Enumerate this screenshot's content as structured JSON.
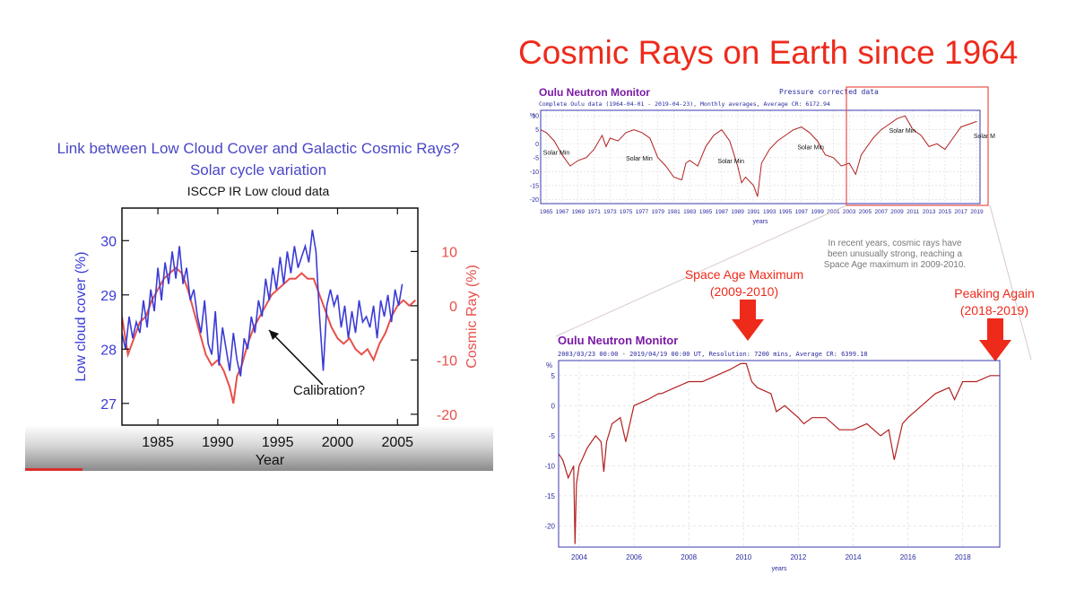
{
  "title": "Cosmic Rays on Earth since 1964",
  "left_panel": {
    "heading_line1": "Link between Low Cloud Cover and Galactic Cosmic Rays?",
    "heading_line2": "Solar cycle variation",
    "subtitle": "ISCCP IR Low cloud data",
    "annotation": "Calibration?"
  },
  "oulu_top_note": "In recent years, cosmic rays have been unusually strong, reaching a Space Age maximum in 2009-2010.",
  "callouts": {
    "space_age_maximum": [
      "Space Age Maximum",
      "(2009-2010)"
    ],
    "peaking_again": [
      "Peaking Again",
      "(2018-2019)"
    ]
  },
  "colors": {
    "title": "#ee2a1b",
    "cloud_series": "#3b3bd6",
    "cosmic_series": "#e8504a",
    "oulu_line": "#b22020",
    "oulu_title": "#7a1aa6",
    "axis_blue": "#2a2aa0"
  },
  "chart_data": [
    {
      "id": "low-cloud-vs-cosmic-ray",
      "type": "line",
      "title": "ISCCP IR Low cloud data",
      "xlabel": "Year",
      "ylabel": "Low cloud cover (%)",
      "ylabel_right": "Cosmic Ray (%)",
      "xlim": [
        1982,
        2006.7
      ],
      "ylim": [
        26.6,
        30.6
      ],
      "ylim_right": [
        -22,
        18
      ],
      "xticks": [
        1985,
        1990,
        1995,
        2000,
        2005
      ],
      "yticks": [
        27,
        28,
        29,
        30
      ],
      "yticks_right": [
        -20,
        -10,
        0,
        10
      ],
      "series": [
        {
          "name": "Low cloud cover (%)",
          "axis": "left",
          "x": [
            1982.0,
            1982.3,
            1982.6,
            1982.9,
            1983.2,
            1983.5,
            1983.8,
            1984.1,
            1984.4,
            1984.7,
            1985.0,
            1985.3,
            1985.6,
            1985.9,
            1986.2,
            1986.5,
            1986.8,
            1987.1,
            1987.4,
            1987.7,
            1988.0,
            1988.3,
            1988.6,
            1988.9,
            1989.2,
            1989.5,
            1989.8,
            1990.1,
            1990.4,
            1990.7,
            1991.0,
            1991.3,
            1991.6,
            1991.9,
            1992.2,
            1992.5,
            1992.8,
            1993.1,
            1993.4,
            1993.7,
            1994.0,
            1994.3,
            1994.6,
            1994.9,
            1995.2,
            1995.5,
            1995.8,
            1996.1,
            1996.4,
            1996.7,
            1997.0,
            1997.3,
            1997.6,
            1997.9,
            1998.2,
            1998.5,
            1998.8,
            1999.1,
            1999.4,
            1999.7,
            2000.0,
            2000.3,
            2000.6,
            2000.9,
            2001.2,
            2001.5,
            2001.8,
            2002.1,
            2002.4,
            2002.7,
            2003.0,
            2003.3,
            2003.6,
            2003.9,
            2004.2,
            2004.5,
            2004.8,
            2005.1,
            2005.4
          ],
          "y": [
            28.3,
            28.0,
            28.6,
            28.2,
            28.5,
            28.3,
            28.9,
            28.4,
            29.1,
            28.7,
            29.5,
            28.9,
            29.6,
            29.2,
            29.8,
            29.3,
            29.9,
            29.2,
            29.5,
            28.9,
            29.1,
            28.6,
            28.3,
            28.9,
            28.1,
            27.9,
            28.7,
            27.7,
            28.4,
            28.0,
            27.6,
            28.3,
            27.8,
            27.5,
            28.2,
            28.0,
            28.6,
            28.3,
            28.9,
            28.6,
            29.3,
            28.9,
            29.5,
            29.1,
            29.7,
            29.2,
            29.8,
            29.4,
            29.9,
            29.5,
            29.7,
            29.9,
            29.6,
            30.2,
            29.8,
            28.6,
            27.6,
            28.8,
            29.1,
            28.8,
            29.0,
            28.4,
            28.8,
            28.2,
            28.7,
            28.3,
            28.9,
            28.5,
            28.6,
            28.4,
            28.8,
            28.2,
            28.9,
            28.6,
            29.0,
            28.5,
            29.1,
            28.8,
            29.2
          ]
        },
        {
          "name": "Cosmic Ray (%)",
          "axis": "right",
          "x": [
            1982.0,
            1982.5,
            1983.0,
            1983.5,
            1984.0,
            1984.5,
            1985.0,
            1985.5,
            1986.0,
            1986.5,
            1987.0,
            1987.5,
            1988.0,
            1988.5,
            1989.0,
            1989.5,
            1990.0,
            1990.5,
            1991.0,
            1991.3,
            1991.6,
            1992.0,
            1992.5,
            1993.0,
            1993.5,
            1994.0,
            1994.5,
            1995.0,
            1995.5,
            1996.0,
            1996.5,
            1997.0,
            1997.5,
            1998.0,
            1998.5,
            1999.0,
            1999.5,
            2000.0,
            2000.5,
            2001.0,
            2001.5,
            2002.0,
            2002.5,
            2003.0,
            2003.5,
            2004.0,
            2004.5,
            2005.0,
            2005.5,
            2006.0,
            2006.5
          ],
          "y": [
            -2,
            -9,
            -6,
            -3,
            -2,
            1,
            3,
            5,
            6,
            7,
            6,
            3,
            -1,
            -5,
            -9,
            -11,
            -10,
            -12,
            -15,
            -18,
            -13,
            -11,
            -7,
            -4,
            -2,
            0,
            2,
            3,
            4,
            5,
            5,
            6,
            5,
            5,
            2,
            -1,
            -4,
            -6,
            -7,
            -6,
            -8,
            -9,
            -8,
            -10,
            -7,
            -5,
            -2,
            0,
            1,
            0,
            1
          ]
        }
      ]
    },
    {
      "id": "oulu-monthly",
      "type": "line",
      "title": "Oulu Neutron Monitor",
      "subtitle": "Complete Oulu data (1964-04-01 - 2019-04-23), Monthly averages, Average CR: 6172.94",
      "top_right_label": "Pressure corrected data",
      "xlabel": "years",
      "ylabel": "%",
      "xlim": [
        1964.3,
        2019.4
      ],
      "ylim": [
        -21.5,
        12
      ],
      "xticks": [
        1965,
        1967,
        1969,
        1971,
        1973,
        1975,
        1977,
        1979,
        1981,
        1983,
        1985,
        1987,
        1989,
        1991,
        1993,
        1995,
        1997,
        1999,
        2001,
        2003,
        2005,
        2007,
        2009,
        2011,
        2013,
        2015,
        2017,
        2019
      ],
      "yticks": [
        -20,
        -15,
        -10,
        -5,
        0,
        5,
        10
      ],
      "annotations": [
        {
          "text": "Solar Min",
          "x": 1964.6,
          "y": -4
        },
        {
          "text": "Solar Min",
          "x": 1975.0,
          "y": -6
        },
        {
          "text": "Solar Min",
          "x": 1986.5,
          "y": -7
        },
        {
          "text": "Solar Min",
          "x": 1996.5,
          "y": -2
        },
        {
          "text": "Solar Min",
          "x": 2008.0,
          "y": 4
        },
        {
          "text": "Solar Min",
          "x": 2018.6,
          "y": 2
        }
      ],
      "series": [
        {
          "x": [
            1964.3,
            1965.0,
            1966.0,
            1967.0,
            1968.0,
            1969.0,
            1970.0,
            1971.0,
            1972.0,
            1972.5,
            1973.0,
            1974.0,
            1975.0,
            1976.0,
            1977.0,
            1978.0,
            1979.0,
            1980.0,
            1981.0,
            1982.0,
            1982.5,
            1983.0,
            1984.0,
            1985.0,
            1986.0,
            1987.0,
            1988.0,
            1989.0,
            1989.5,
            1990.0,
            1991.0,
            1991.5,
            1992.0,
            1993.0,
            1994.0,
            1995.0,
            1996.0,
            1997.0,
            1998.0,
            1999.0,
            2000.0,
            2001.0,
            2002.0,
            2003.0,
            2003.8,
            2004.5,
            2005.0,
            2006.0,
            2007.0,
            2008.0,
            2009.0,
            2010.0,
            2011.0,
            2012.0,
            2013.0,
            2014.0,
            2015.0,
            2016.0,
            2017.0,
            2018.0,
            2019.0
          ],
          "y": [
            5,
            4,
            1,
            -4,
            -8,
            -6,
            -5,
            -2,
            3,
            -1,
            2,
            1,
            4,
            5,
            4,
            2,
            -5,
            -8,
            -12,
            -13,
            -7,
            -6,
            -8,
            -1,
            3,
            5,
            1,
            -8,
            -14,
            -12,
            -15,
            -19,
            -7,
            -2,
            1,
            3,
            5,
            6,
            4,
            1,
            -4,
            -5,
            -8,
            -7,
            -11,
            -4,
            -2,
            2,
            5,
            7,
            9,
            10,
            5,
            3,
            -1,
            0,
            -2,
            2,
            6,
            7,
            8
          ]
        }
      ]
    },
    {
      "id": "oulu-2003-2019",
      "type": "line",
      "title": "Oulu Neutron Monitor",
      "subtitle": "2003/03/23  00:00 - 2019/04/19  00:00 UT, Resolution: 7200 mins, Average CR: 6399.18",
      "xlabel": "years",
      "ylabel": "%",
      "xlim": [
        2003.25,
        2019.35
      ],
      "ylim": [
        -23.5,
        7.5
      ],
      "xticks": [
        2004,
        2006,
        2008,
        2010,
        2012,
        2014,
        2016,
        2018
      ],
      "yticks": [
        -20,
        -15,
        -10,
        -5,
        0,
        5
      ],
      "series": [
        {
          "x": [
            2003.25,
            2003.4,
            2003.6,
            2003.8,
            2003.85,
            2003.9,
            2004.0,
            2004.3,
            2004.6,
            2004.8,
            2004.9,
            2005.0,
            2005.2,
            2005.5,
            2005.7,
            2006.0,
            2006.5,
            2006.9,
            2007.0,
            2007.5,
            2008.0,
            2008.5,
            2009.0,
            2009.5,
            2009.9,
            2010.1,
            2010.3,
            2010.5,
            2011.0,
            2011.2,
            2011.5,
            2012.0,
            2012.2,
            2012.5,
            2013.0,
            2013.5,
            2014.0,
            2014.5,
            2015.0,
            2015.3,
            2015.5,
            2015.8,
            2016.0,
            2016.5,
            2017.0,
            2017.5,
            2017.7,
            2018.0,
            2018.5,
            2019.0,
            2019.35
          ],
          "y": [
            -8,
            -9,
            -12,
            -10,
            -23,
            -13,
            -10,
            -7,
            -5,
            -6,
            -11,
            -6,
            -3,
            -2,
            -6,
            0,
            1,
            2,
            2,
            3,
            4,
            4,
            5,
            6,
            7,
            7,
            4,
            3,
            2,
            -1,
            0,
            -2,
            -3,
            -2,
            -2,
            -4,
            -4,
            -3,
            -5,
            -4,
            -9,
            -3,
            -2,
            0,
            2,
            3,
            1,
            4,
            4,
            5,
            5
          ]
        }
      ]
    }
  ]
}
